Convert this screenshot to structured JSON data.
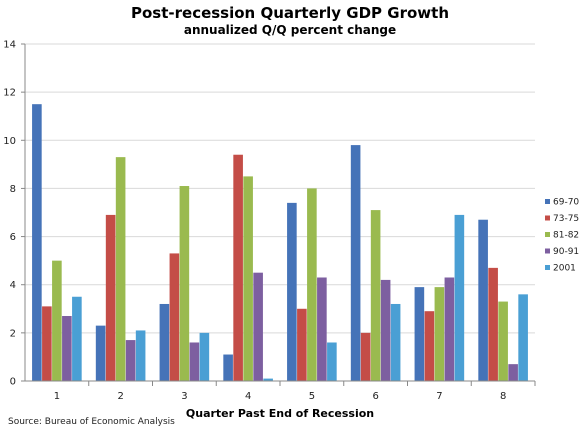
{
  "chart_data": {
    "type": "bar",
    "title": "Post-recession Quarterly GDP Growth",
    "subtitle": "annualized Q/Q percent change",
    "xlabel": "Quarter Past End of Recession",
    "ylabel": "",
    "ylim": [
      0,
      14
    ],
    "yticks": [
      0,
      2,
      4,
      6,
      8,
      10,
      12,
      14
    ],
    "grid": true,
    "legend_position": "right",
    "categories": [
      "1",
      "2",
      "3",
      "4",
      "5",
      "6",
      "7",
      "8"
    ],
    "series": [
      {
        "name": "69-70",
        "color": "#4573b8",
        "values": [
          11.5,
          2.3,
          3.2,
          1.1,
          7.4,
          9.8,
          3.9,
          6.7
        ]
      },
      {
        "name": "73-75",
        "color": "#c44d47",
        "values": [
          3.1,
          6.9,
          5.3,
          9.4,
          3.0,
          2.0,
          2.9,
          4.7
        ]
      },
      {
        "name": "81-82",
        "color": "#9aba4f",
        "values": [
          5.0,
          9.3,
          8.1,
          8.5,
          8.0,
          7.1,
          3.9,
          3.3
        ]
      },
      {
        "name": "90-91",
        "color": "#7d5fa0",
        "values": [
          2.7,
          1.7,
          1.6,
          4.5,
          4.3,
          4.2,
          4.3,
          0.7
        ]
      },
      {
        "name": "2001",
        "color": "#4a9fd4",
        "values": [
          3.5,
          2.1,
          2.0,
          0.1,
          1.6,
          3.2,
          6.9,
          3.6
        ]
      }
    ],
    "source": "Source: Bureau of Economic Analysis"
  }
}
